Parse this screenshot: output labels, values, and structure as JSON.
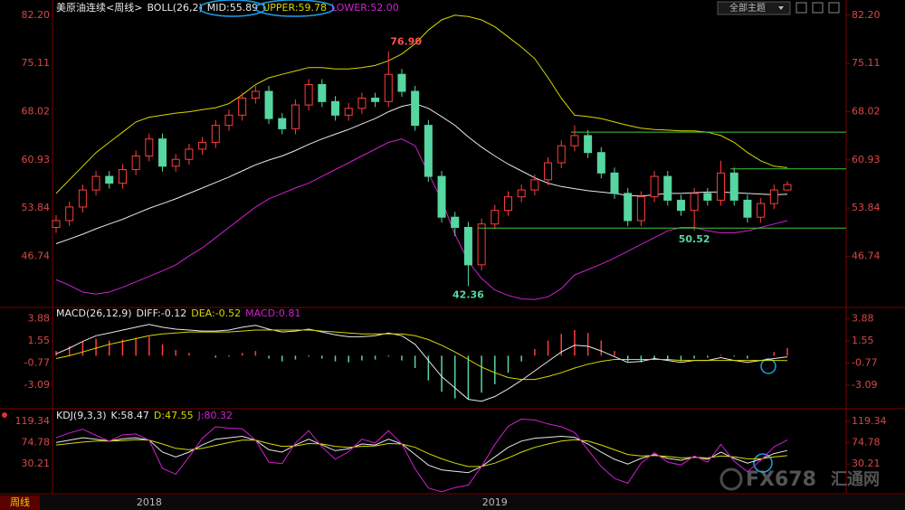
{
  "ui": {
    "theme_button": "全部主题",
    "period": "周线",
    "watermark": [
      "FX678",
      "汇通网"
    ]
  },
  "chart_data": [
    {
      "type": "candlestick",
      "title": "美原油连续<周线>",
      "indicator": "BOLL(26,2)",
      "categories": [
        null,
        null,
        null,
        null,
        null,
        null,
        null,
        "2018",
        null,
        null,
        null,
        null,
        null,
        null,
        null,
        null,
        null,
        null,
        null,
        null,
        null,
        null,
        null,
        null,
        null,
        null,
        null,
        null,
        null,
        null,
        null,
        null,
        null,
        "2019",
        null,
        null,
        null,
        null,
        null,
        null,
        null,
        null,
        null,
        null,
        null,
        null,
        null,
        null,
        null,
        null,
        null,
        null,
        null,
        null,
        null,
        null
      ],
      "open": [
        51.0,
        52.0,
        54.0,
        56.5,
        58.5,
        57.5,
        59.5,
        61.5,
        64.0,
        60.0,
        61.0,
        62.5,
        63.5,
        66.0,
        67.5,
        70.0,
        71.0,
        67.0,
        65.5,
        69.0,
        72.0,
        69.5,
        67.5,
        68.5,
        70.0,
        69.5,
        73.5,
        71.0,
        66.0,
        58.5,
        52.5,
        51.0,
        45.5,
        51.5,
        53.5,
        55.5,
        56.5,
        58.0,
        60.5,
        63.0,
        64.5,
        62.0,
        59.0,
        56.0,
        52.0,
        55.5,
        58.5,
        55.0,
        53.5,
        56.0,
        55.0,
        59.0,
        55.0,
        52.5,
        54.5,
        56.5
      ],
      "high": [
        52.8,
        54.8,
        57.3,
        59.3,
        59.3,
        60.3,
        62.3,
        64.8,
        64.8,
        61.8,
        63.3,
        64.3,
        66.8,
        68.3,
        70.8,
        71.8,
        71.8,
        67.8,
        69.8,
        72.8,
        72.8,
        70.3,
        69.3,
        70.8,
        70.8,
        76.9,
        74.3,
        71.8,
        66.8,
        59.3,
        53.3,
        51.8,
        52.3,
        54.3,
        56.3,
        57.3,
        58.8,
        61.3,
        63.8,
        66.0,
        65.3,
        62.8,
        59.8,
        56.8,
        56.3,
        59.3,
        59.3,
        55.8,
        56.8,
        56.8,
        60.8,
        59.8,
        55.8,
        55.3,
        57.3,
        57.8
      ],
      "low": [
        50.2,
        51.2,
        53.2,
        55.7,
        56.7,
        56.7,
        58.7,
        60.7,
        59.2,
        59.2,
        60.2,
        61.7,
        62.7,
        65.2,
        66.7,
        69.2,
        66.2,
        64.7,
        64.7,
        68.2,
        68.7,
        66.7,
        66.7,
        67.7,
        68.7,
        68.7,
        70.2,
        65.2,
        57.7,
        51.7,
        49.7,
        42.36,
        44.7,
        50.7,
        52.7,
        54.7,
        55.7,
        57.2,
        59.7,
        62.2,
        61.2,
        58.2,
        55.2,
        51.2,
        51.2,
        54.7,
        54.2,
        52.7,
        50.52,
        54.2,
        54.2,
        54.2,
        51.7,
        51.7,
        53.7,
        56.5
      ],
      "close": [
        52.0,
        54.0,
        56.5,
        58.5,
        57.5,
        59.5,
        61.5,
        64.0,
        60.0,
        61.0,
        62.5,
        63.5,
        66.0,
        67.5,
        70.0,
        71.0,
        67.0,
        65.5,
        69.0,
        72.0,
        69.5,
        67.5,
        68.5,
        70.0,
        69.5,
        73.5,
        71.0,
        66.0,
        58.5,
        52.5,
        51.0,
        45.5,
        51.5,
        53.5,
        55.5,
        56.5,
        58.0,
        60.5,
        63.0,
        64.5,
        62.0,
        59.0,
        56.0,
        52.0,
        55.5,
        58.5,
        55.0,
        53.5,
        56.0,
        55.0,
        59.0,
        55.0,
        52.5,
        54.5,
        56.5,
        57.3
      ],
      "up_color": "#ff3c3c",
      "down_color": "#56d6a0",
      "series": [
        {
          "name": "MID:55.89",
          "color": "#e8e8e8",
          "values": [
            48.6,
            49.3,
            50,
            50.8,
            51.5,
            52.2,
            53,
            53.8,
            54.5,
            55.2,
            56,
            56.8,
            57.6,
            58.4,
            59.3,
            60.2,
            60.9,
            61.5,
            62.3,
            63.2,
            64,
            64.7,
            65.4,
            66.2,
            67,
            68,
            68.8,
            69.2,
            68.5,
            67.3,
            66,
            64.3,
            62.8,
            61.5,
            60.3,
            59.3,
            58.3,
            57.5,
            57,
            56.7,
            56.4,
            56.2,
            56,
            55.7,
            55.6,
            55.8,
            56,
            56,
            56.1,
            56.2,
            56.2,
            56.1,
            56,
            55.9,
            55.8,
            55.89
          ]
        },
        {
          "name": "UPPER:59.78",
          "color": "#d8d800",
          "values": [
            56,
            58,
            60,
            62,
            63.5,
            65,
            66.5,
            67.2,
            67.5,
            67.8,
            68,
            68.3,
            68.6,
            69.2,
            70.5,
            72,
            73,
            73.5,
            74,
            74.5,
            74.5,
            74.3,
            74.3,
            74.5,
            74.8,
            75.5,
            76.5,
            78,
            80,
            81.5,
            82.2,
            82,
            81.5,
            80.5,
            79,
            77.5,
            75.8,
            73,
            70,
            67.5,
            67.3,
            67,
            66.5,
            66,
            65.6,
            65.4,
            65.3,
            65.2,
            65.2,
            65,
            64.5,
            63.5,
            62,
            60.8,
            60,
            59.78
          ]
        },
        {
          "name": "LOWER:52.00",
          "color": "#d020d0",
          "values": [
            43.3,
            42.5,
            41.5,
            41.2,
            41.5,
            42.2,
            43,
            43.8,
            44.6,
            45.5,
            46.8,
            48,
            49.5,
            51,
            52.5,
            54,
            55.2,
            56,
            56.8,
            57.5,
            58.5,
            59.5,
            60.5,
            61.5,
            62.5,
            63.5,
            64,
            63,
            59,
            55,
            50,
            46,
            43.5,
            41.8,
            41,
            40.5,
            40.4,
            40.8,
            42,
            44,
            44.8,
            45.6,
            46.5,
            47.5,
            48.5,
            49.5,
            50.5,
            51,
            51,
            50.5,
            50.2,
            50.2,
            50.5,
            51,
            51.5,
            52.0
          ]
        }
      ],
      "lines": [
        {
          "value": 65.0,
          "from": 39,
          "color": "#3cc83c"
        },
        {
          "value": 59.6,
          "from": 51,
          "color": "#3cc83c"
        },
        {
          "value": 50.9,
          "from": 32,
          "color": "#3cc83c"
        }
      ],
      "annotations": [
        {
          "text": "76.90",
          "index": 25,
          "value": 76.9,
          "color": "#ff5050"
        },
        {
          "text": "42.36",
          "index": 31,
          "value": 42.36,
          "color": "#56d6a0"
        },
        {
          "text": "50.52",
          "index": 48,
          "value": 50.52,
          "color": "#56d6a0"
        }
      ],
      "ylim": [
        39.5,
        83.1
      ],
      "yticks": [
        {
          "value": 82.2,
          "label": "82.20"
        },
        75.11,
        68.02,
        60.93,
        53.84,
        46.74
      ]
    },
    {
      "type": "macd",
      "title": "MACD(26,12,9)",
      "up_color": "#ff3c3c",
      "down_color": "#56d6a0",
      "series": [
        {
          "name": "DIFF:-0.12",
          "color": "#e8e8e8",
          "values": [
            0.2,
            0.8,
            1.5,
            2.1,
            2.4,
            2.7,
            3.0,
            3.3,
            3.0,
            2.8,
            2.7,
            2.6,
            2.6,
            2.7,
            3.0,
            3.2,
            2.8,
            2.5,
            2.6,
            2.8,
            2.5,
            2.2,
            2.0,
            2.0,
            2.1,
            2.4,
            2.1,
            1.2,
            -0.5,
            -2.2,
            -3.4,
            -4.6,
            -4.8,
            -4.3,
            -3.5,
            -2.6,
            -1.6,
            -0.6,
            0.4,
            1.1,
            1.0,
            0.5,
            -0.1,
            -0.7,
            -0.6,
            -0.3,
            -0.5,
            -0.7,
            -0.5,
            -0.5,
            -0.2,
            -0.5,
            -0.7,
            -0.5,
            -0.3,
            -0.12
          ]
        },
        {
          "name": "DEA:-0.52",
          "color": "#d8d800",
          "values": [
            -0.3,
            0.0,
            0.4,
            0.8,
            1.2,
            1.5,
            1.8,
            2.1,
            2.3,
            2.4,
            2.5,
            2.5,
            2.5,
            2.5,
            2.6,
            2.7,
            2.7,
            2.7,
            2.7,
            2.7,
            2.6,
            2.5,
            2.4,
            2.3,
            2.3,
            2.3,
            2.3,
            2.1,
            1.7,
            1.1,
            0.4,
            -0.4,
            -1.2,
            -1.8,
            -2.3,
            -2.5,
            -2.5,
            -2.2,
            -1.8,
            -1.3,
            -0.9,
            -0.6,
            -0.4,
            -0.4,
            -0.4,
            -0.4,
            -0.4,
            -0.5,
            -0.5,
            -0.5,
            -0.5,
            -0.5,
            -0.5,
            -0.5,
            -0.5,
            -0.52
          ]
        },
        {
          "name": "MACD:0.81",
          "color": "#d020d0",
          "type": "bar",
          "values": [
            0.5,
            1.0,
            1.5,
            1.8,
            1.6,
            1.7,
            1.9,
            2.0,
            1.2,
            0.6,
            0.3,
            0.0,
            -0.2,
            -0.1,
            0.3,
            0.5,
            -0.3,
            -0.6,
            -0.4,
            -0.1,
            -0.3,
            -0.6,
            -0.7,
            -0.5,
            -0.4,
            -0.1,
            -0.5,
            -1.3,
            -2.6,
            -3.8,
            -4.5,
            -4.6,
            -3.9,
            -3.0,
            -1.8,
            -0.6,
            0.7,
            1.6,
            2.3,
            2.7,
            2.4,
            1.6,
            0.5,
            -0.6,
            -0.7,
            -0.3,
            -0.5,
            -0.6,
            -0.3,
            -0.2,
            0.1,
            -0.1,
            -0.3,
            0.0,
            0.4,
            0.81
          ]
        }
      ],
      "ylim": [
        -5.4,
        4.8
      ],
      "yticks": [
        3.88,
        1.55,
        -0.77,
        -3.09
      ]
    },
    {
      "type": "line",
      "title": "KDJ(9,3,3)",
      "series": [
        {
          "name": "K:58.47",
          "color": "#e8e8e8",
          "values": [
            75,
            80,
            85,
            82,
            78,
            83,
            85,
            80,
            55,
            45,
            55,
            70,
            82,
            85,
            88,
            80,
            60,
            55,
            70,
            82,
            70,
            58,
            62,
            72,
            70,
            82,
            72,
            50,
            28,
            18,
            15,
            12,
            25,
            45,
            65,
            78,
            84,
            86,
            88,
            86,
            72,
            55,
            40,
            30,
            42,
            50,
            42,
            38,
            45,
            40,
            55,
            42,
            32,
            40,
            52,
            58.47
          ]
        },
        {
          "name": "D:47.55",
          "color": "#d8d800",
          "values": [
            70,
            73,
            76,
            78,
            78,
            79,
            81,
            80,
            72,
            63,
            60,
            63,
            69,
            75,
            80,
            80,
            73,
            67,
            68,
            73,
            72,
            67,
            65,
            67,
            68,
            73,
            72,
            65,
            52,
            41,
            32,
            25,
            25,
            32,
            43,
            55,
            65,
            72,
            78,
            81,
            78,
            70,
            60,
            50,
            47,
            48,
            46,
            43,
            44,
            43,
            47,
            45,
            41,
            41,
            45,
            47.55
          ]
        },
        {
          "name": "J:80.32",
          "color": "#d020d0",
          "values": [
            85,
            95,
            103,
            90,
            78,
            91,
            93,
            80,
            21,
            9,
            45,
            84,
            108,
            105,
            104,
            80,
            34,
            31,
            74,
            100,
            66,
            40,
            56,
            82,
            74,
            100,
            72,
            20,
            -20,
            -28,
            -19,
            -14,
            25,
            71,
            109,
            124,
            122,
            114,
            108,
            96,
            60,
            25,
            0,
            -10,
            32,
            54,
            34,
            28,
            47,
            34,
            71,
            36,
            14,
            38,
            66,
            80.32
          ]
        }
      ],
      "ylim": [
        -30,
        140
      ],
      "yticks": [
        119.34,
        74.78,
        30.21
      ]
    }
  ]
}
